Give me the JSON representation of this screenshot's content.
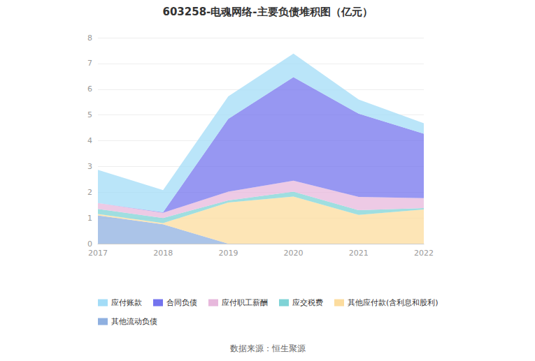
{
  "chart_data": {
    "type": "area",
    "title": "603258-电魂网络-主要负债堆积图（亿元）",
    "annotation": "数据来源：恒生聚源",
    "categories": [
      "2017",
      "2018",
      "2019",
      "2020",
      "2021",
      "2022"
    ],
    "stacked": true,
    "grid": true,
    "legend": "bottom",
    "ylim": [
      0,
      8
    ],
    "yticks": [
      0,
      1,
      2,
      3,
      4,
      5,
      6,
      7,
      8
    ],
    "series": [
      {
        "name": "应付账款",
        "color": "#a3dcf7",
        "values": [
          1.29,
          0.86,
          0.87,
          0.91,
          0.55,
          0.41
        ]
      },
      {
        "name": "合同负债",
        "color": "#7474ee",
        "values": [
          0,
          0.02,
          2.83,
          4.02,
          3.23,
          2.5
        ]
      },
      {
        "name": "应付职工薪酬",
        "color": "#e7b8dc",
        "values": [
          0.23,
          0.2,
          0.34,
          0.43,
          0.52,
          0.39
        ]
      },
      {
        "name": "应交税费",
        "color": "#7fd3d6",
        "values": [
          0.2,
          0.2,
          0.08,
          0.19,
          0.18,
          0.05
        ]
      },
      {
        "name": "其他应付款(含利息和股利)",
        "color": "#fcdc9e",
        "values": [
          0.05,
          0.05,
          1.6,
          1.83,
          1.12,
          1.33
        ]
      },
      {
        "name": "其他流动负债",
        "color": "#8fb0e0",
        "values": [
          1.1,
          0.75,
          0,
          0,
          0,
          0
        ]
      }
    ]
  }
}
